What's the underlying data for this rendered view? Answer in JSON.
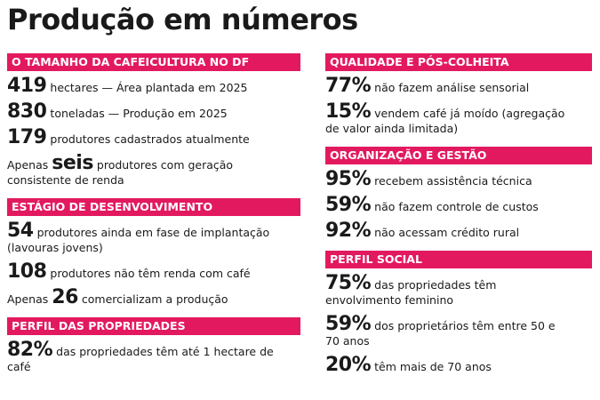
{
  "title": "Produção em números",
  "columns": [
    {
      "sections": [
        {
          "heading": "O TAMANHO DA CAFEICULTURA NO DF",
          "items": [
            {
              "figure": "419",
              "text": "hectares — Área plantada em 2025"
            },
            {
              "figure": "830",
              "text": "toneladas — Produção em 2025"
            },
            {
              "figure": "179",
              "text": "produtores cadastrados atualmente"
            },
            {
              "lead": "Apenas",
              "figure": "seis",
              "text": "produtores com geração consistente de renda"
            }
          ]
        },
        {
          "heading": "ESTÁGIO DE DESENVOLVIMENTO",
          "items": [
            {
              "figure": "54",
              "text": "produtores ainda em fase de implantação (lavouras jovens)"
            },
            {
              "figure": "108",
              "text": "produtores não têm renda com café"
            },
            {
              "lead": "Apenas",
              "figure": "26",
              "text": "comercializam a produção"
            }
          ]
        },
        {
          "heading": "PERFIL DAS PROPRIEDADES",
          "items": [
            {
              "figure": "82%",
              "text": "das propriedades têm até 1 hectare de café"
            }
          ]
        }
      ]
    },
    {
      "sections": [
        {
          "heading": "QUALIDADE E PÓS-COLHEITA",
          "items": [
            {
              "figure": "77%",
              "text": "não fazem análise sensorial"
            },
            {
              "figure": "15%",
              "text": "vendem café já moído (agregação de valor ainda limitada)"
            }
          ]
        },
        {
          "heading": "ORGANIZAÇÃO E GESTÃO",
          "items": [
            {
              "figure": "95%",
              "text": "recebem assistência técnica"
            },
            {
              "figure": "59%",
              "text": "não fazem controle de custos"
            },
            {
              "figure": "92%",
              "text": "não acessam crédito rural"
            }
          ]
        },
        {
          "heading": "PERFIL SOCIAL",
          "items": [
            {
              "figure": "75%",
              "text": "das propriedades têm envolvimento feminino"
            },
            {
              "figure": "59%",
              "text": "dos proprietários têm entre 50 e 70 anos"
            },
            {
              "figure": "20%",
              "text": "têm mais de 70 anos"
            }
          ]
        }
      ]
    }
  ]
}
